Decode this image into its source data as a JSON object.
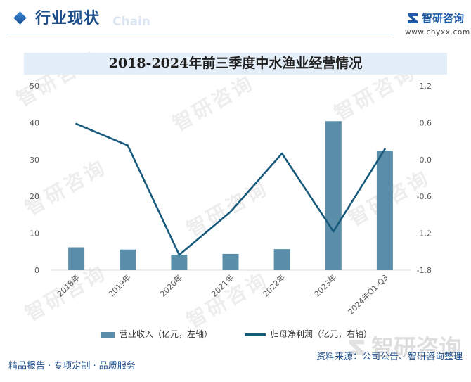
{
  "header": {
    "title": "行业现状",
    "title_en": "Chain",
    "logo_name": "智研咨询",
    "logo_url": "www.chyxx.com"
  },
  "chart_data": {
    "type": "bar",
    "title": "2018-2024年前三季度中水渔业经营情况",
    "categories": [
      "2018年",
      "2019年",
      "2020年",
      "2021年",
      "2022年",
      "2023年",
      "2024年Q1-Q3"
    ],
    "series": [
      {
        "name": "营业收入（亿元，左轴）",
        "type": "bar",
        "axis": "left",
        "values": [
          6.2,
          5.6,
          4.2,
          4.4,
          5.7,
          40.4,
          32.4
        ]
      },
      {
        "name": "归母净利润（亿元，右轴）",
        "type": "line",
        "axis": "right",
        "values": [
          0.58,
          0.23,
          -1.55,
          -0.85,
          0.1,
          -1.17,
          0.17
        ]
      }
    ],
    "ylim_left": [
      0,
      50
    ],
    "yticks_left": [
      "0",
      "10",
      "20",
      "30",
      "40",
      "50"
    ],
    "ylim_right": [
      -1.8,
      1.2
    ],
    "yticks_right": [
      "-1.8",
      "-1.2",
      "-0.6",
      "0.0",
      "0.6",
      "1.2"
    ],
    "grid": false,
    "legend": "bottom"
  },
  "footer": {
    "source": "资料来源：公司公告、智研咨询整理",
    "slogan": "精品报告 · 专项定制 · 品质服务"
  },
  "watermark": {
    "text": "智研咨询"
  },
  "colors": {
    "accent": "#1d4f8c",
    "bar": "#5b8fa9",
    "line": "#16597b",
    "title_band": "#e4eef8"
  },
  "icons": {
    "section_marker": "diamond-icon",
    "logo": "logo-icon"
  }
}
